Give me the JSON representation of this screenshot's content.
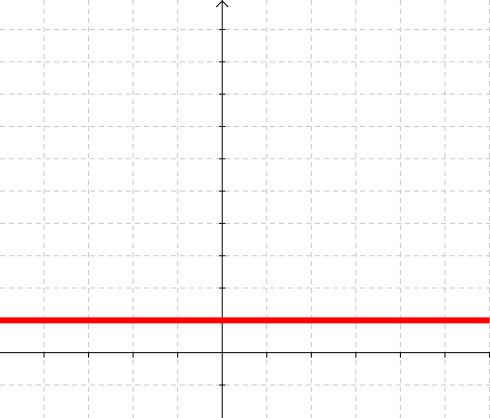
{
  "chart_data": {
    "type": "line",
    "grid": true,
    "xlim": [
      -5,
      6
    ],
    "ylim": [
      -1,
      11.75
    ],
    "x_tick_values": [
      -5,
      -4,
      -3,
      -2,
      -1,
      0,
      1,
      2,
      3,
      4,
      5,
      6
    ],
    "y_tick_values": [
      -1,
      0,
      1,
      2,
      3,
      4,
      5,
      6,
      7,
      8,
      9,
      10,
      11
    ],
    "series": [
      {
        "color": "#ff0000",
        "x": [
          -5,
          6
        ],
        "y": [
          1,
          1
        ]
      }
    ],
    "title": "",
    "xlabel": "",
    "ylabel": ""
  },
  "colors": {
    "grid": "#c8c8c8",
    "axis": "#000000",
    "line": "#ff0000"
  }
}
